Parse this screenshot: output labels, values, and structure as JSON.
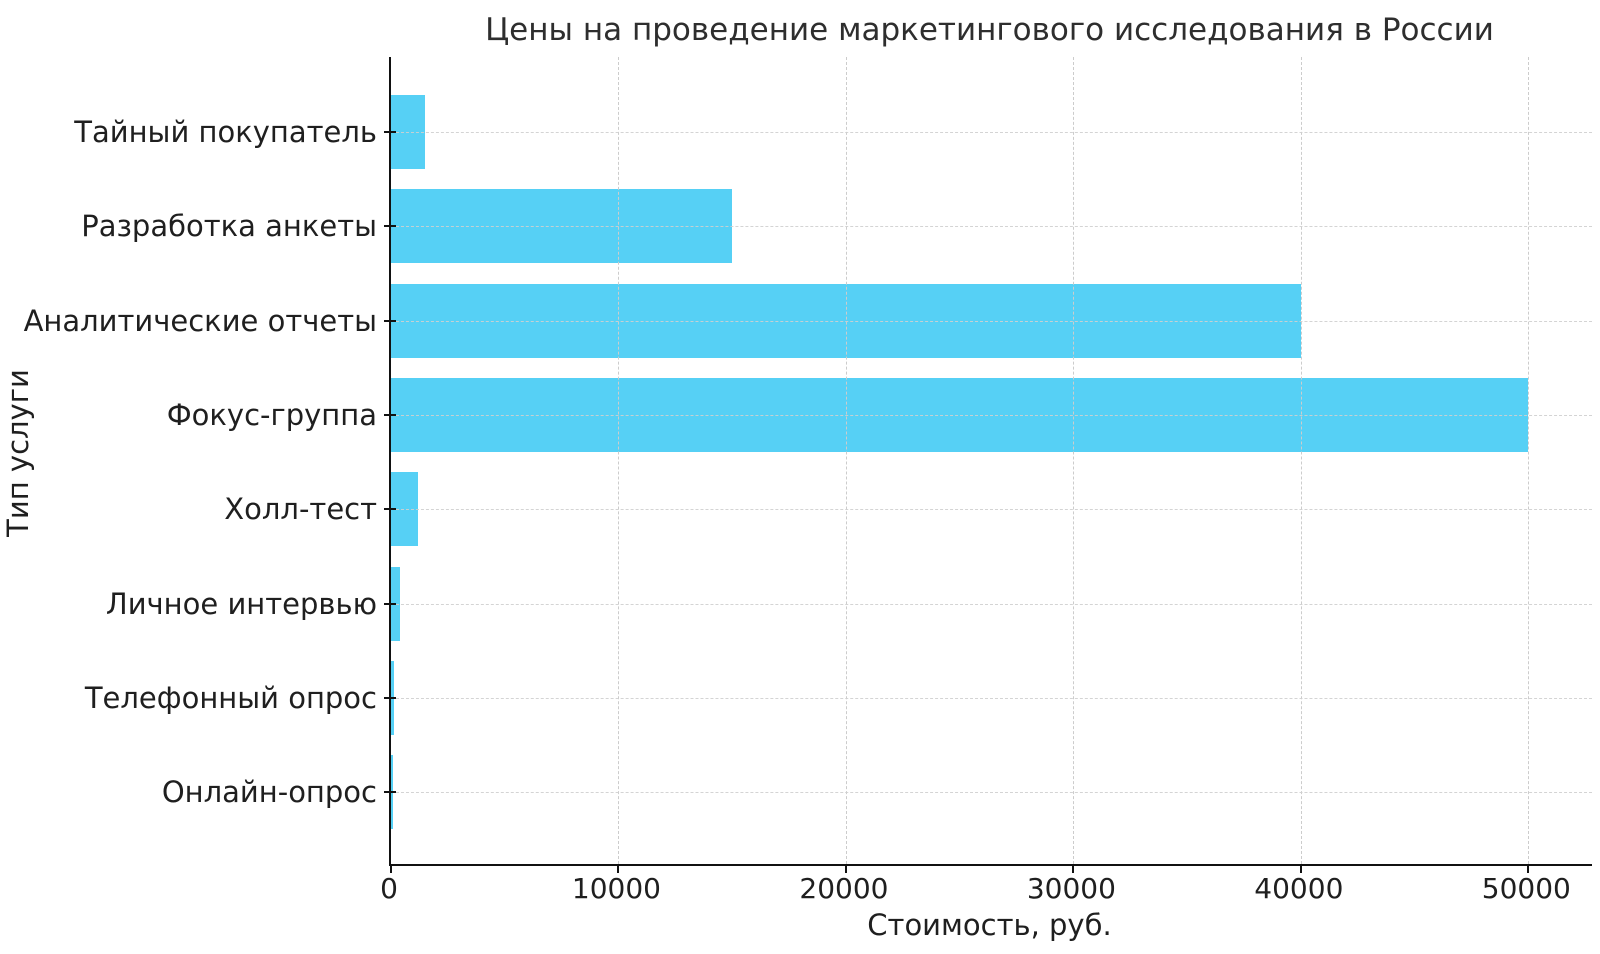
{
  "chart_data": {
    "type": "bar",
    "orientation": "horizontal",
    "title": "Цены на проведение маркетингового исследования в России",
    "xlabel": "Стоимость, руб.",
    "ylabel": "Тип услуги",
    "categories": [
      "Тайный покупатель",
      "Разработка анкеты",
      "Аналитические отчеты",
      "Фокус-группа",
      "Холл-тест",
      "Личное интервью",
      "Телефонный опрос",
      "Онлайн-опрос"
    ],
    "values": [
      1500,
      15000,
      40000,
      50000,
      1200,
      400,
      150,
      100
    ],
    "xticks": [
      0,
      10000,
      20000,
      30000,
      40000,
      50000
    ],
    "xlim": [
      0,
      52800
    ],
    "bar_color": "#56D0F5",
    "axis_color": "#111111",
    "text_color": "#1f1f1f",
    "grid": true,
    "grid_style": "dashed",
    "grid_color": "#cccccc",
    "legend": null
  }
}
